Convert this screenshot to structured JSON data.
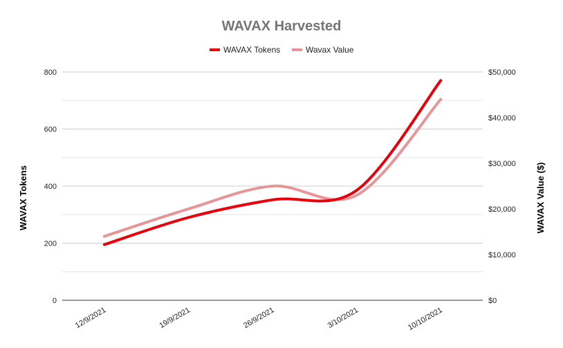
{
  "chart_data": {
    "type": "line",
    "title": "WAVAX Harvested",
    "categories": [
      "12/9/2021",
      "19/9/2021",
      "26/9/2021",
      "3/10/2021",
      "10/10/2021"
    ],
    "series": [
      {
        "name": "WAVAX Tokens",
        "axis": "left",
        "color": "#e8000b",
        "values": [
          195,
          290,
          352,
          385,
          770
        ]
      },
      {
        "name": "Wavax Value",
        "axis": "right",
        "color": "#e69696",
        "values": [
          14000,
          20000,
          25000,
          23000,
          44000
        ]
      }
    ],
    "y_left": {
      "label": "WAVAX Tokens",
      "range": [
        0,
        800
      ],
      "ticks": [
        "0",
        "200",
        "400",
        "600",
        "800"
      ]
    },
    "y_right": {
      "label": "WAVAX Value ($)",
      "range": [
        0,
        50000
      ],
      "ticks": [
        "$0",
        "$10,000",
        "$20,000",
        "$30,000",
        "$40,000",
        "$50,000"
      ]
    },
    "grid": true,
    "legend_position": "top-center"
  }
}
